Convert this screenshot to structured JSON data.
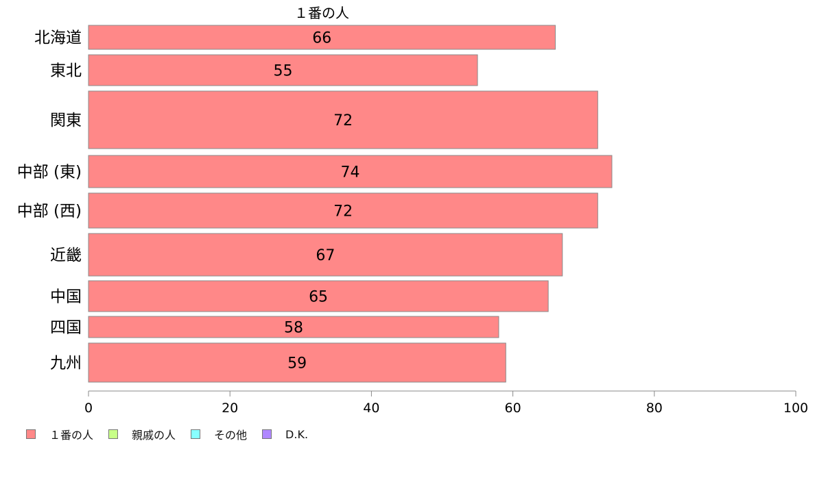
{
  "chart_data": {
    "type": "bar",
    "orientation": "horizontal",
    "title": "１番の人",
    "categories": [
      "北海道",
      "東北",
      "関東",
      "中部 (東)",
      "中部 (西)",
      "近畿",
      "中国",
      "四国",
      "九州"
    ],
    "values": [
      66,
      55,
      72,
      74,
      72,
      67,
      65,
      58,
      59
    ],
    "bar_label_values": [
      "66",
      "55",
      "72",
      "74",
      "72",
      "67",
      "65",
      "58",
      "59"
    ],
    "xlim": [
      0,
      100
    ],
    "x_ticks": [
      "0",
      "20",
      "40",
      "60",
      "80",
      "100"
    ],
    "grid": false,
    "legend_position": "bottom-left",
    "legend": [
      {
        "label": "１番の人",
        "color": "#ff8888"
      },
      {
        "label": "親戚の人",
        "color": "#c8ff88"
      },
      {
        "label": "その他",
        "color": "#88ffff"
      },
      {
        "label": "D.K.",
        "color": "#b088ff"
      }
    ]
  }
}
